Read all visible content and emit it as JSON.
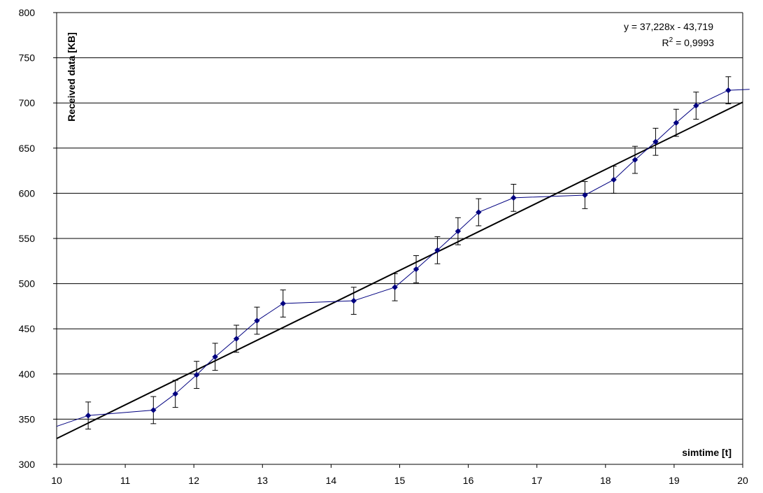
{
  "chart_data": {
    "type": "line",
    "title": "",
    "xlabel": "simtime [t]",
    "ylabel": "Received data [KB]",
    "xlim": [
      10,
      20
    ],
    "ylim": [
      300,
      800
    ],
    "xticks": [
      "10",
      "11",
      "12",
      "13",
      "14",
      "15",
      "16",
      "17",
      "18",
      "19",
      "20"
    ],
    "yticks": [
      "300",
      "350",
      "400",
      "450",
      "500",
      "550",
      "600",
      "650",
      "700",
      "750",
      "800"
    ],
    "grid": "horizontal",
    "legend": "none",
    "series": [
      {
        "type": "line-markers",
        "color": "#000080",
        "x": [
          10.46,
          11.41,
          11.73,
          12.04,
          12.31,
          12.62,
          12.92,
          13.3,
          14.33,
          14.93,
          15.24,
          15.55,
          15.85,
          16.15,
          16.66,
          17.7,
          18.12,
          18.43,
          18.73,
          19.03,
          19.32,
          19.79
        ],
        "y": [
          354,
          360,
          378,
          399,
          419,
          439,
          459,
          478,
          481,
          496,
          516,
          537,
          558,
          579,
          595,
          598,
          615,
          637,
          657,
          678,
          697,
          714
        ],
        "error": 15
      },
      {
        "type": "trendline",
        "color": "#000000",
        "slope": 37.228,
        "intercept": -43.719,
        "equation": "y = 37,228x - 43,719",
        "r2_label": "R",
        "r2_exp": "2",
        "r2_value": " = 0,9993"
      }
    ],
    "extension_left": [
      10,
      342
    ],
    "extension_right": [
      20.1,
      715
    ]
  },
  "colors": {
    "series": "#000080",
    "trend": "#000000",
    "grid": "#000000",
    "background": "#ffffff"
  }
}
